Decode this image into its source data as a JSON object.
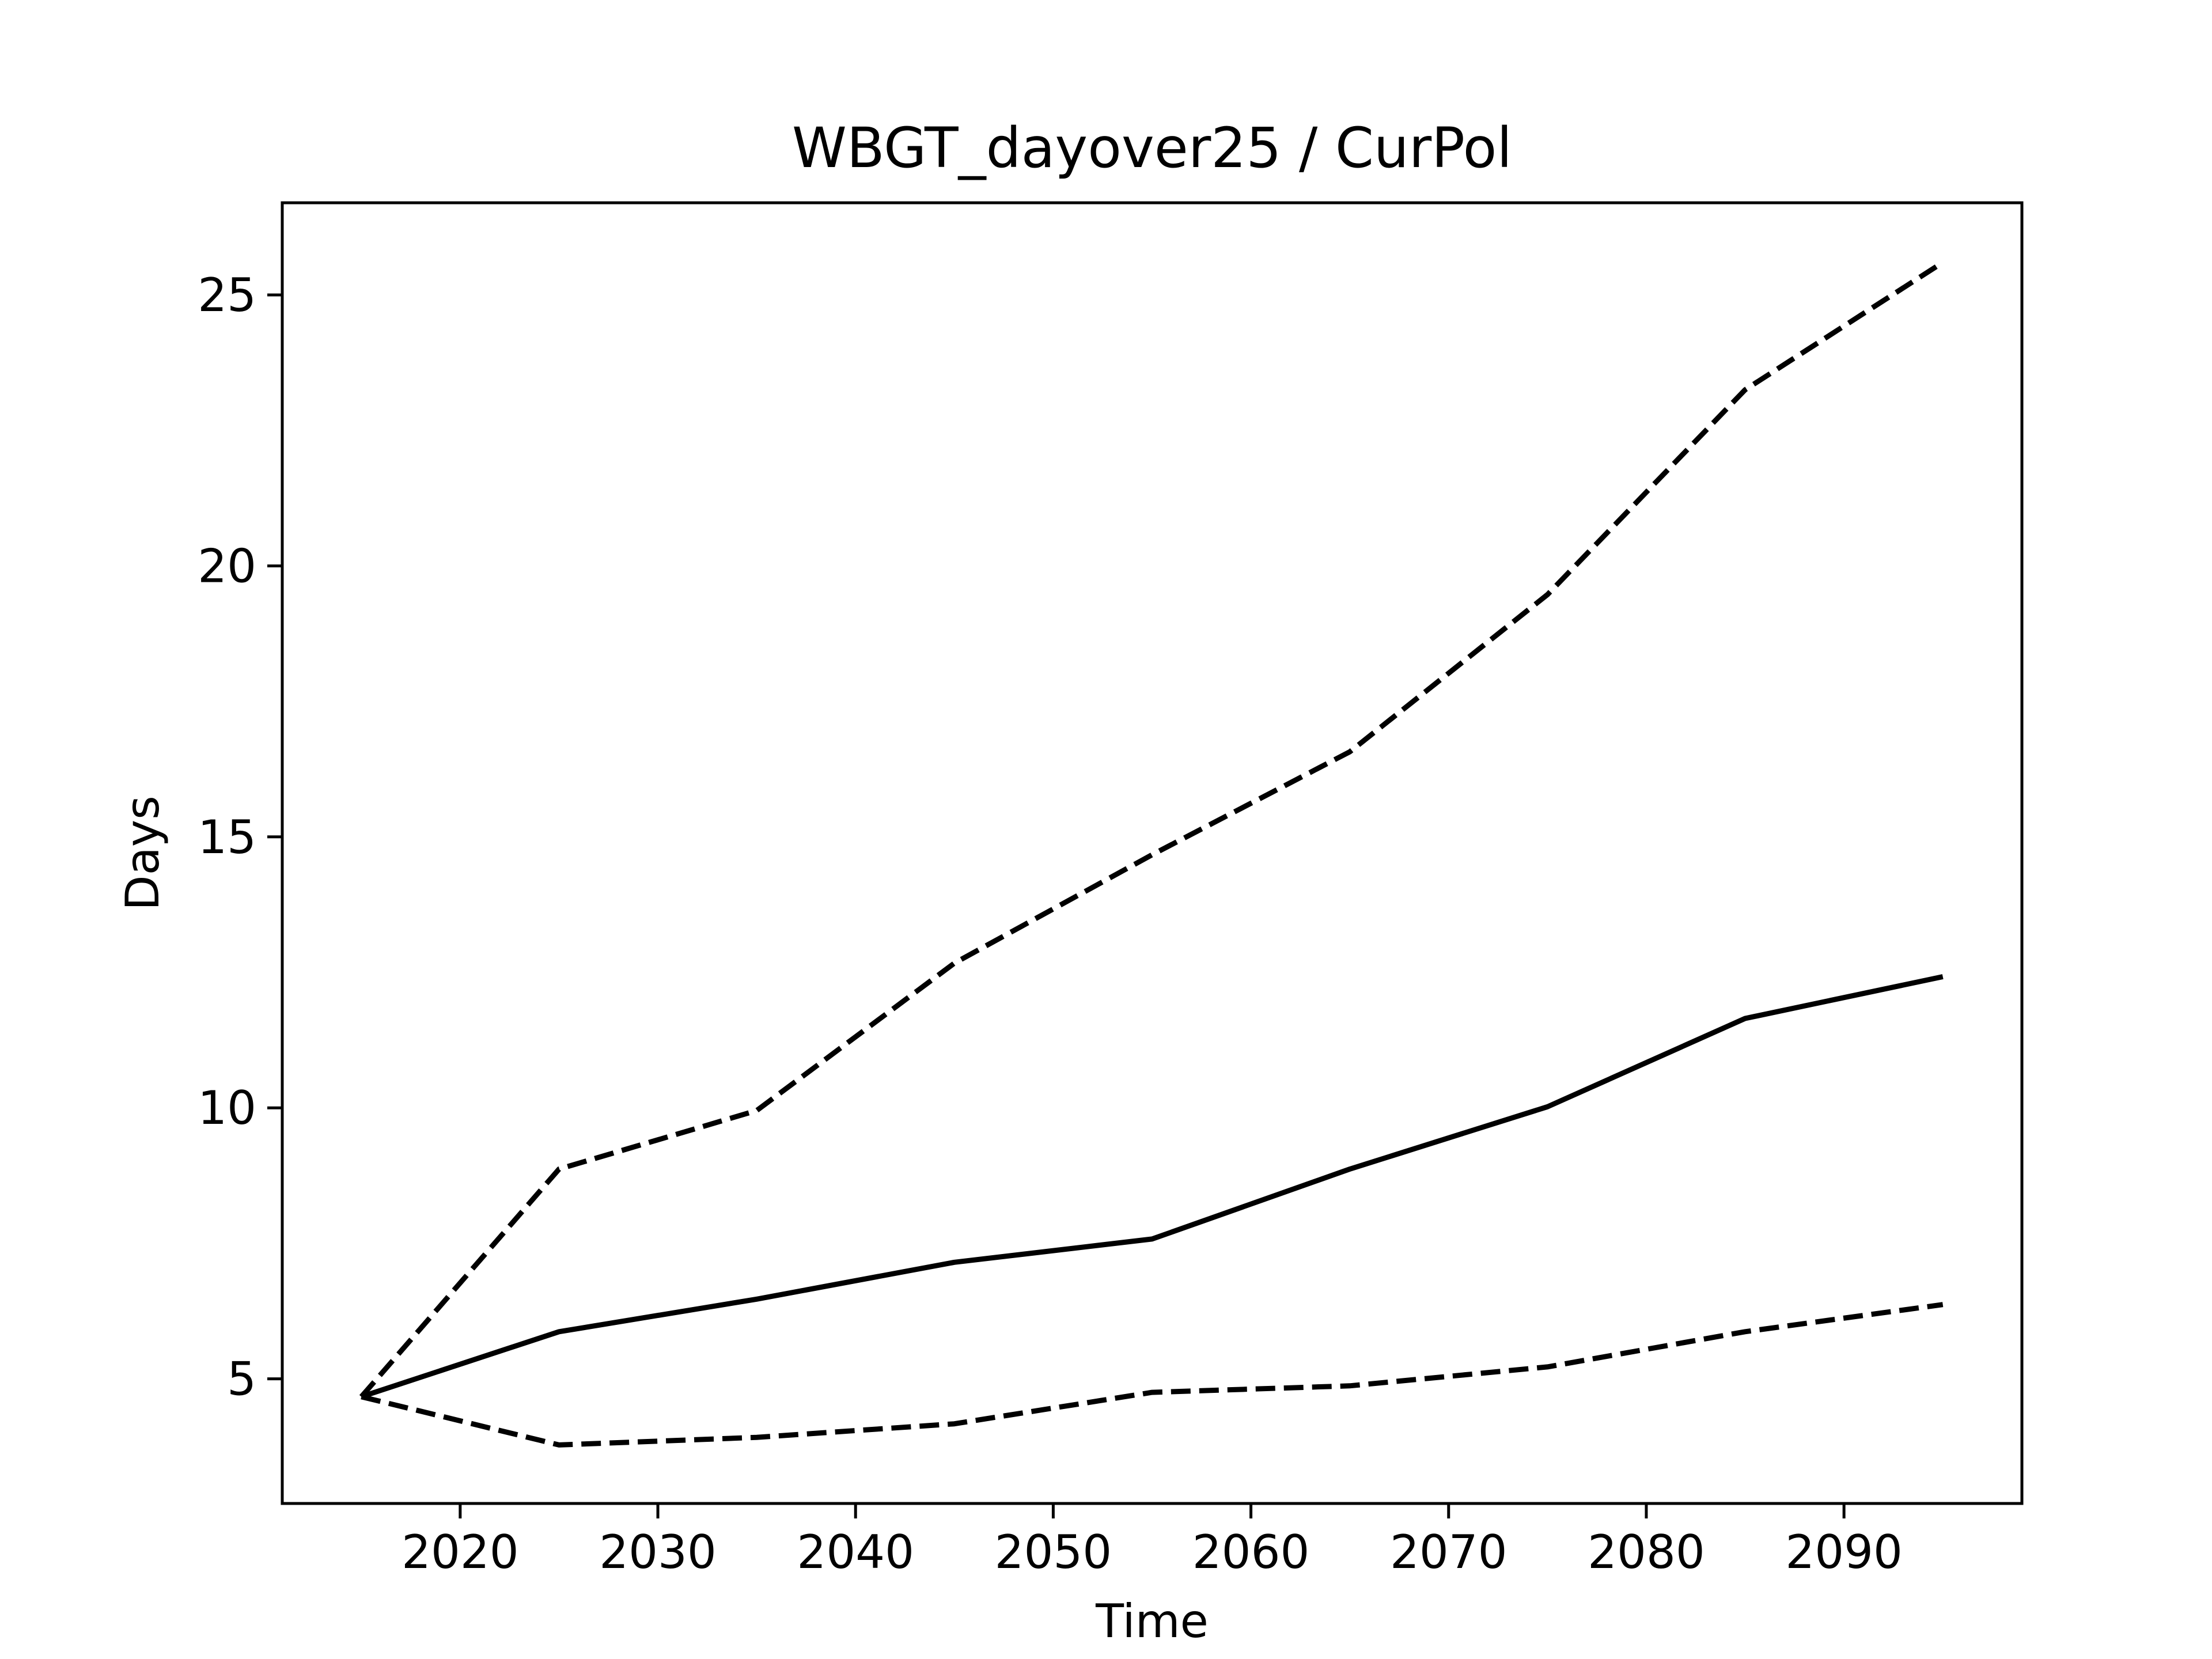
{
  "chart_data": {
    "type": "line",
    "title": "WBGT_dayover25 / CurPol",
    "xlabel": "Time",
    "ylabel": "Days",
    "xlim": [
      2011,
      2099
    ],
    "ylim": [
      2.7,
      26.7
    ],
    "grid": false,
    "legend": "none",
    "x_ticks": [
      2020,
      2030,
      2040,
      2050,
      2060,
      2070,
      2080,
      2090
    ],
    "y_ticks": [
      5,
      10,
      15,
      20,
      25
    ],
    "line_color": "#000000",
    "x": [
      2015,
      2025,
      2035,
      2045,
      2055,
      2065,
      2075,
      2085,
      2095
    ],
    "series": [
      {
        "style": "solid",
        "values": [
          4.67,
          5.87,
          6.47,
          7.15,
          7.58,
          8.87,
          10.02,
          11.65,
          12.42
        ]
      },
      {
        "style": "dashed",
        "values": [
          4.67,
          8.87,
          9.95,
          12.67,
          14.67,
          16.57,
          19.47,
          23.25,
          25.6
        ]
      },
      {
        "style": "dashed",
        "values": [
          4.67,
          3.78,
          3.92,
          4.17,
          4.75,
          4.87,
          5.22,
          5.87,
          6.37
        ]
      }
    ]
  }
}
